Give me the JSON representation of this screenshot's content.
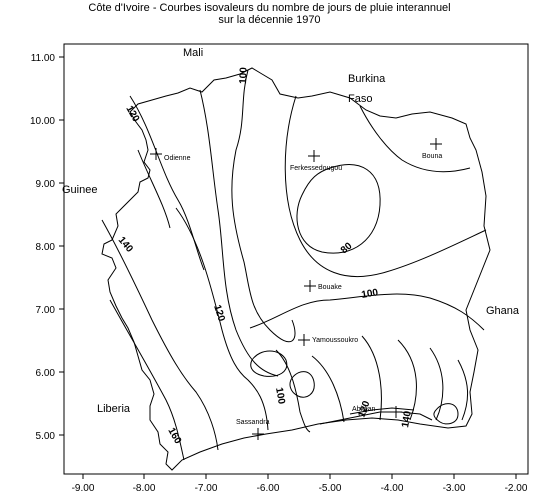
{
  "title_line1": "Côte d'Ivoire - Courbes isovaleurs du nombre de jours de pluie interannuel",
  "title_line2": "sur la décennie 1970",
  "x_ticks": [
    "-9.00",
    "-8.00",
    "-7.00",
    "-6.00",
    "-5.00",
    "-4.00",
    "-3.00",
    "-2.00"
  ],
  "y_ticks": [
    "11.00",
    "10.00",
    "9.00",
    "8.00",
    "7.00",
    "6.00",
    "5.00"
  ],
  "countries": {
    "mali": "Mali",
    "burkina_line1": "Burkina",
    "burkina_line2": "Faso",
    "guinee": "Guinee",
    "ghana": "Ghana",
    "liberia": "Liberia"
  },
  "stations": {
    "odienne": "Odienne",
    "ferkessedougou": "Ferkessedougou",
    "bouna": "Bouna",
    "bouake": "Bouake",
    "yamoussoukro": "Yamoussoukro",
    "sassandra": "Sassandra",
    "abidjan": "Abidjan"
  },
  "contour_labels": {
    "c100_north": "100",
    "c120_nw": "120",
    "c140_west": "140",
    "c120_center": "120",
    "c80": "80",
    "c100_east": "100",
    "c100_south": "100",
    "c160": "160",
    "c120_south": "120",
    "c140_south": "140"
  },
  "colors": {
    "ink": "#000000",
    "background": "#ffffff"
  }
}
